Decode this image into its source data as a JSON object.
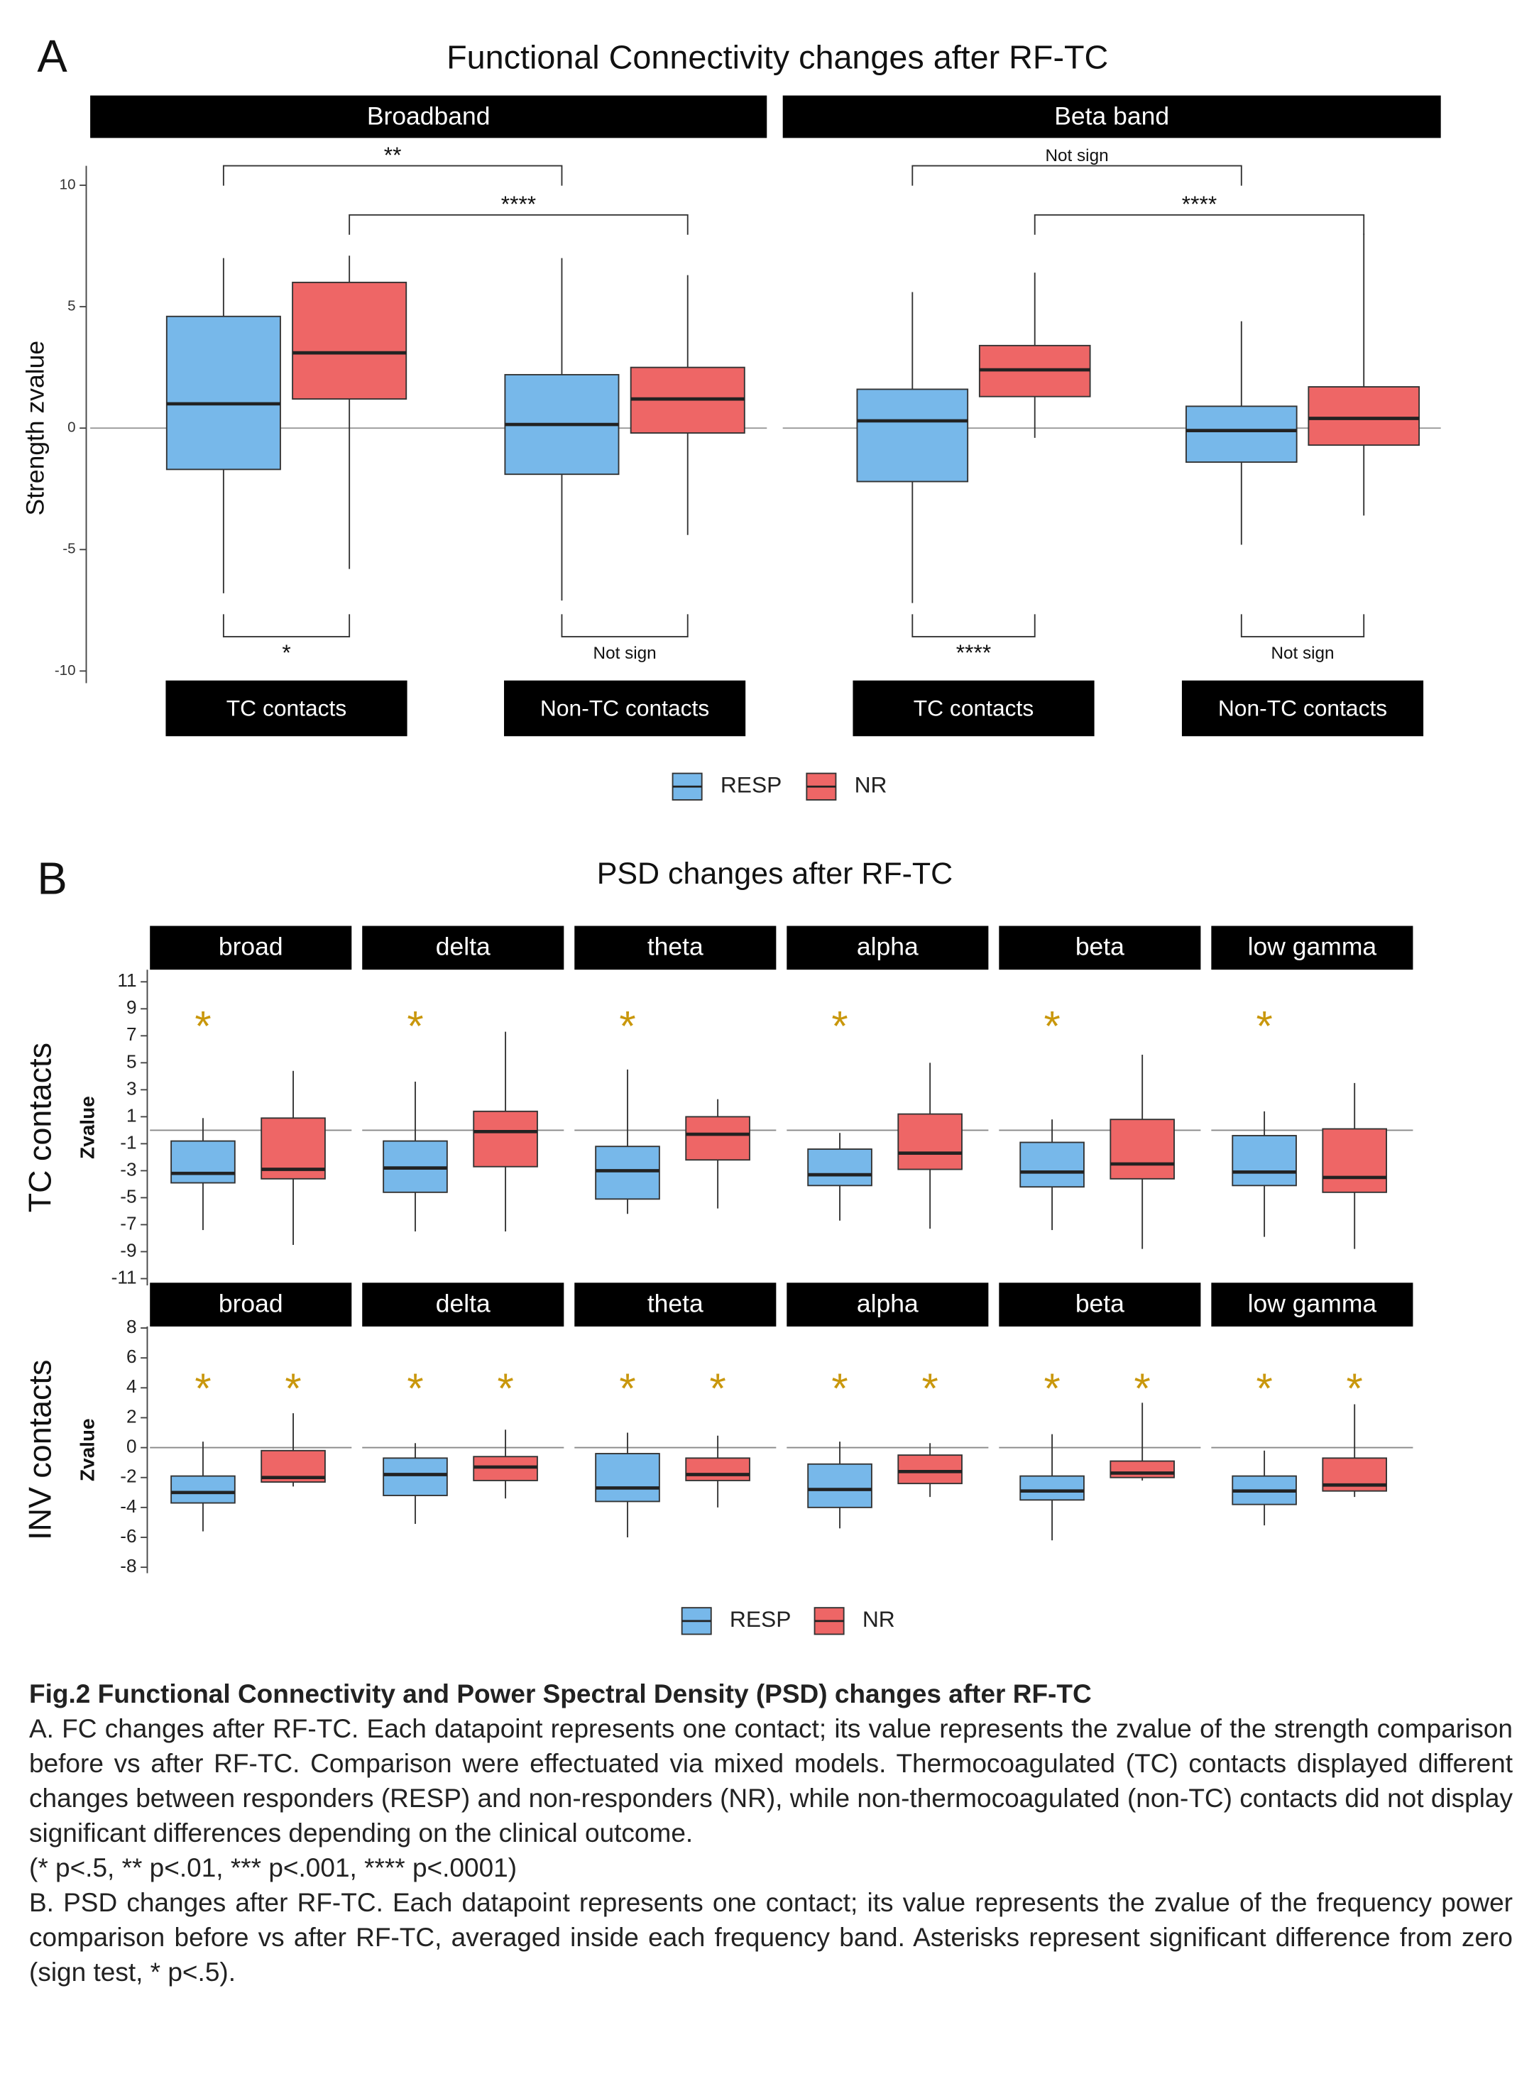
{
  "chart_data": [
    {
      "type": "box",
      "panel_label": "A",
      "title": "Functional Connectivity changes after RF-TC",
      "ylabel": "Strength zvalue",
      "ylim": [
        -10.5,
        10.8
      ],
      "yticks": [
        -10,
        -5,
        0,
        5,
        10
      ],
      "facets": [
        {
          "name": "Broadband",
          "top": [
            "**",
            "****"
          ],
          "bottom": [
            "*",
            "Not sign"
          ]
        },
        {
          "name": "Beta band",
          "top": [
            "Not sign",
            "****"
          ],
          "bottom": [
            "****",
            "Not sign"
          ]
        }
      ],
      "groups": [
        "TC contacts",
        "Non-TC contacts"
      ],
      "series": [
        {
          "name": "RESP",
          "color": "#77b8ea",
          "q1": [
            -1.7,
            -1.9,
            -2.2,
            -1.4
          ],
          "median": [
            1.0,
            0.15,
            0.3,
            -0.1
          ],
          "q3": [
            4.6,
            2.2,
            1.6,
            0.9
          ],
          "whisker_low": [
            -6.8,
            -7.1,
            -7.2,
            -4.8
          ],
          "whisker_high": [
            7.0,
            7.0,
            5.6,
            4.4
          ]
        },
        {
          "name": "NR",
          "color": "#ee6666",
          "q1": [
            1.2,
            -0.2,
            1.3,
            -0.7
          ],
          "median": [
            3.1,
            1.2,
            2.4,
            0.4
          ],
          "q3": [
            6.0,
            2.5,
            3.4,
            1.7
          ],
          "whisker_low": [
            -5.8,
            -4.4,
            -0.4,
            -3.6
          ],
          "whisker_high": [
            7.1,
            6.3,
            6.4,
            8.0
          ]
        }
      ]
    },
    {
      "type": "box",
      "panel_label": "B",
      "title": "PSD changes after RF-TC",
      "facets": [
        "broad",
        "delta",
        "theta",
        "alpha",
        "beta",
        "low gamma"
      ],
      "series": [
        {
          "name": "RESP",
          "color": "#77b8ea"
        },
        {
          "name": "NR",
          "color": "#ee6666"
        }
      ],
      "star_color": "#c9970c",
      "rows": [
        {
          "label": "TC contacts",
          "ylabel": "Zvalue",
          "ylim": [
            -11.5,
            11.9
          ],
          "yticks": [
            -11,
            -9,
            -7,
            -5,
            -3,
            -1,
            1,
            3,
            5,
            7,
            9,
            11
          ],
          "stats": [
            {
              "stars": [
                "*",
                "*",
                "*",
                "*",
                "*",
                "*"
              ],
              "q1": [
                -3.9,
                -4.6,
                -5.1,
                -4.1,
                -4.2,
                -4.1
              ],
              "median": [
                -3.2,
                -2.8,
                -3.0,
                -3.3,
                -3.1,
                -3.1
              ],
              "q3": [
                -0.8,
                -0.8,
                -1.2,
                -1.4,
                -0.9,
                -0.4
              ],
              "whisker_low": [
                -7.4,
                -7.5,
                -6.2,
                -6.7,
                -7.4,
                -7.9
              ],
              "whisker_high": [
                0.9,
                3.6,
                4.5,
                -0.2,
                0.8,
                1.4
              ]
            },
            {
              "stars": [
                null,
                null,
                null,
                null,
                null,
                null
              ],
              "q1": [
                -3.6,
                -2.7,
                -2.2,
                -2.9,
                -3.6,
                -4.6
              ],
              "median": [
                -2.9,
                -0.1,
                -0.3,
                -1.7,
                -2.5,
                -3.5
              ],
              "q3": [
                0.9,
                1.4,
                1.0,
                1.2,
                0.8,
                0.1
              ],
              "whisker_low": [
                -8.5,
                -7.5,
                -5.8,
                -7.3,
                -8.8,
                -8.8
              ],
              "whisker_high": [
                4.4,
                7.3,
                2.3,
                5.0,
                5.6,
                3.5
              ]
            }
          ]
        },
        {
          "label": "INV contacts",
          "ylabel": "Zvalue",
          "ylim": [
            -8.4,
            8.1
          ],
          "yticks": [
            -8,
            -6,
            -4,
            -2,
            0,
            2,
            4,
            6,
            8
          ],
          "stats": [
            {
              "stars": [
                "*",
                "*",
                "*",
                "*",
                "*",
                "*"
              ],
              "q1": [
                -3.7,
                -3.2,
                -3.6,
                -4.0,
                -3.5,
                -3.8
              ],
              "median": [
                -3.0,
                -1.8,
                -2.7,
                -2.8,
                -2.9,
                -2.9
              ],
              "q3": [
                -1.9,
                -0.7,
                -0.4,
                -1.1,
                -1.9,
                -1.9
              ],
              "whisker_low": [
                -5.6,
                -5.1,
                -6.0,
                -5.4,
                -6.2,
                -5.2
              ],
              "whisker_high": [
                0.4,
                0.3,
                1.0,
                0.4,
                0.9,
                -0.2
              ]
            },
            {
              "stars": [
                "*",
                "*",
                "*",
                "*",
                "*",
                "*"
              ],
              "q1": [
                -2.3,
                -2.2,
                -2.2,
                -2.4,
                -2.0,
                -2.9
              ],
              "median": [
                -2.0,
                -1.3,
                -1.8,
                -1.6,
                -1.7,
                -2.5
              ],
              "q3": [
                -0.2,
                -0.6,
                -0.7,
                -0.5,
                -0.9,
                -0.7
              ],
              "whisker_low": [
                -2.6,
                -3.4,
                -4.0,
                -3.3,
                -2.2,
                -3.3
              ],
              "whisker_high": [
                2.3,
                1.2,
                0.8,
                0.3,
                3.0,
                2.9
              ]
            }
          ]
        }
      ]
    }
  ],
  "caption": {
    "title": "Fig.2 Functional Connectivity and Power Spectral Density (PSD) changes after RF-TC",
    "paragraphs": [
      "A. FC changes after RF-TC. Each datapoint represents one contact; its value represents the zvalue of the strength comparison before vs after RF-TC. Comparison were effectuated via mixed models. Thermocoagulated (TC) contacts displayed different changes between responders (RESP) and non-responders (NR), while non-thermocoagulated (non-TC) contacts did not display significant differences depending on the clinical outcome.",
      "(* p<.5, ** p<.01, *** p<.001, **** p<.0001)",
      "B. PSD changes after RF-TC. Each datapoint represents one contact; its value represents the zvalue of the frequency power comparison before vs after RF-TC, averaged inside each frequency band. Asterisks represent significant difference from zero (sign test, * p<.5)."
    ]
  }
}
